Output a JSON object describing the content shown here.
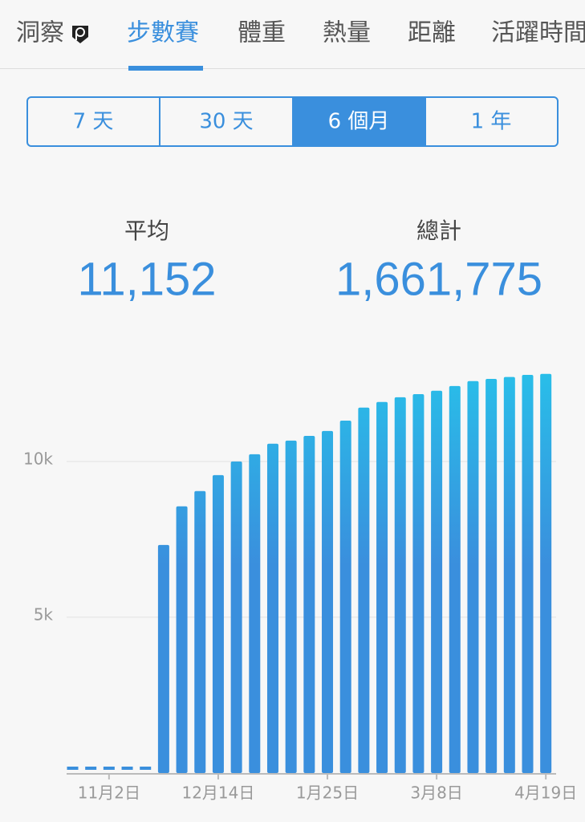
{
  "tabs": [
    "洞察",
    "步數賽",
    "體重",
    "熱量",
    "距離",
    "活躍時間"
  ],
  "range_buttons": [
    "7 天",
    "30 天",
    "6 個月",
    "1 年"
  ],
  "stats": [
    {
      "label": "平均",
      "value": "11,152"
    },
    {
      "label": "總計",
      "value": "1,661,775"
    }
  ],
  "chart_data": {
    "type": "bar",
    "categories": [
      null,
      null,
      "11月2日",
      null,
      null,
      null,
      null,
      null,
      "12月14日",
      null,
      null,
      null,
      null,
      null,
      "1月25日",
      null,
      null,
      null,
      null,
      null,
      "3月8日",
      null,
      null,
      null,
      null,
      null,
      "4月19日"
    ],
    "values": [
      0,
      0,
      0,
      0,
      0,
      7320,
      8560,
      9050,
      9560,
      10000,
      10230,
      10570,
      10670,
      10820,
      10980,
      11310,
      11730,
      11910,
      12060,
      12160,
      12270,
      12420,
      12580,
      12650,
      12710,
      12780,
      12810
    ],
    "color": "#3a8fdd",
    "ylim": [
      0,
      13500
    ],
    "yticks": [
      {
        "value": 5000,
        "label": "5k"
      },
      {
        "value": 10000,
        "label": "10k"
      }
    ],
    "grid": true
  }
}
